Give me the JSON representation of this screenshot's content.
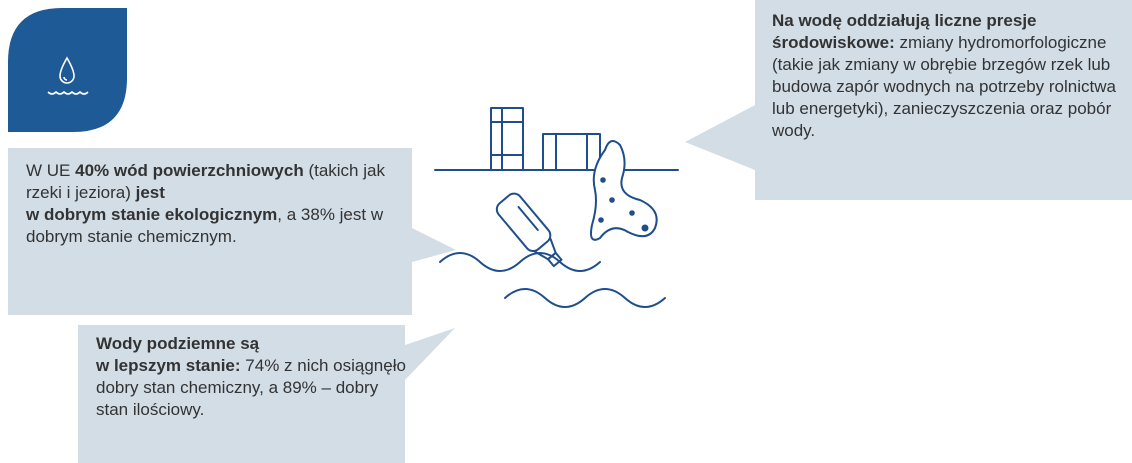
{
  "callouts": [
    {
      "segments": [
        "W UE ",
        "40% wód powierzchniowych",
        " (takich jak rzeki i jeziora) ",
        "jest",
        "w dobrym stanie ekologicznym",
        ", a 38% jest w dobrym stanie chemicznym."
      ]
    },
    {
      "segments": [
        "Wody podziemne są",
        "w lepszym stanie:",
        " 74% z nich osiągnęło dobry stan chemiczny, a 89% – dobry stan ilościowy."
      ]
    },
    {
      "segments": [
        "Na wodę oddziałują liczne presje środowiskowe:",
        " zmiany hydromorfologiczne (takie jak zmiany w obrębie brzegów rzek lub budowa zapór wodnych na potrzeby rolnictwa lub energetyki), zanieczyszczenia oraz pobór wody."
      ]
    }
  ]
}
